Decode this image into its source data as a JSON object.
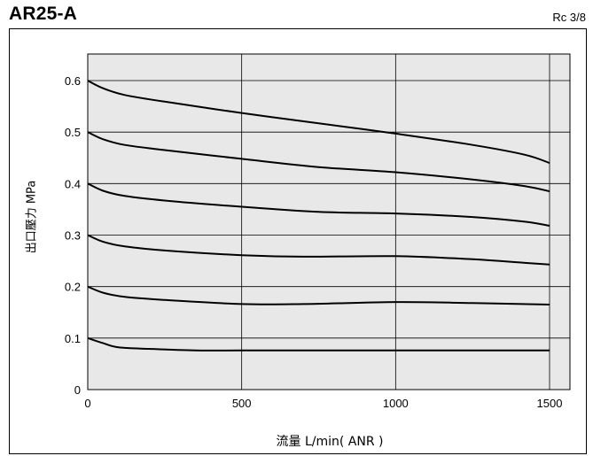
{
  "chart_data": {
    "type": "line",
    "title": "AR25-A",
    "subtitle": "Rc 3/8",
    "xlabel": "流量 L/min( ANR )",
    "ylabel": "出口壓力 MPa",
    "xlim": [
      0,
      1500
    ],
    "ylim": [
      0,
      0.65
    ],
    "xticks": [
      0,
      500,
      1000,
      1500
    ],
    "yticks": [
      0,
      0.1,
      0.2,
      0.3,
      0.4,
      0.5,
      0.6
    ],
    "xtick_labels": [
      "0",
      "500",
      "1000",
      "1500"
    ],
    "ytick_labels": [
      "0",
      "0.1",
      "0.2",
      "0.3",
      "0.4",
      "0.5",
      "0.6"
    ],
    "grid": true,
    "background": "#e8e8e8",
    "series": [
      {
        "x": [
          0,
          50,
          120,
          250,
          500,
          750,
          1000,
          1250,
          1420,
          1500
        ],
        "y": [
          0.6,
          0.585,
          0.572,
          0.559,
          0.537,
          0.517,
          0.497,
          0.475,
          0.456,
          0.44
        ]
      },
      {
        "x": [
          0,
          50,
          120,
          250,
          500,
          750,
          1000,
          1250,
          1420,
          1500
        ],
        "y": [
          0.5,
          0.486,
          0.475,
          0.465,
          0.448,
          0.432,
          0.422,
          0.408,
          0.395,
          0.385
        ]
      },
      {
        "x": [
          0,
          50,
          120,
          250,
          500,
          750,
          1000,
          1250,
          1420,
          1500
        ],
        "y": [
          0.4,
          0.386,
          0.376,
          0.367,
          0.355,
          0.345,
          0.342,
          0.335,
          0.326,
          0.318
        ]
      },
      {
        "x": [
          0,
          50,
          120,
          250,
          500,
          700,
          1000,
          1250,
          1420,
          1500
        ],
        "y": [
          0.3,
          0.287,
          0.278,
          0.27,
          0.261,
          0.258,
          0.259,
          0.253,
          0.246,
          0.243
        ]
      },
      {
        "x": [
          0,
          50,
          120,
          250,
          500,
          700,
          1000,
          1250,
          1500
        ],
        "y": [
          0.2,
          0.188,
          0.18,
          0.174,
          0.166,
          0.166,
          0.17,
          0.168,
          0.165
        ]
      },
      {
        "x": [
          0,
          50,
          100,
          200,
          350,
          500,
          1000,
          1500
        ],
        "y": [
          0.1,
          0.09,
          0.082,
          0.079,
          0.076,
          0.076,
          0.076,
          0.076
        ]
      }
    ]
  }
}
